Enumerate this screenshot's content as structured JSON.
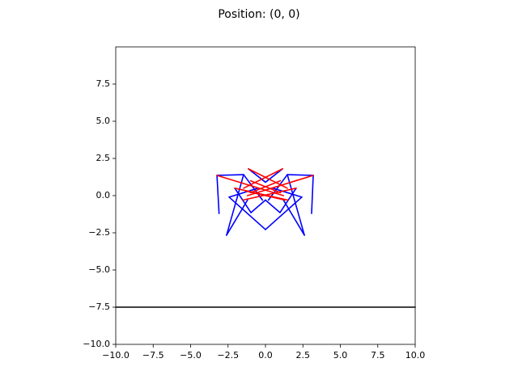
{
  "chart_data": {
    "type": "segments",
    "title": "Position: (0, 0)",
    "xlim": [
      -10,
      10
    ],
    "ylim": [
      -10,
      10
    ],
    "xticks": [
      {
        "value": -10,
        "label": "−10.0"
      },
      {
        "value": -7.5,
        "label": "−7.5"
      },
      {
        "value": -5,
        "label": "−5.0"
      },
      {
        "value": -2.5,
        "label": "−2.5"
      },
      {
        "value": 0,
        "label": "0.0"
      },
      {
        "value": 2.5,
        "label": "2.5"
      },
      {
        "value": 5,
        "label": "5.0"
      },
      {
        "value": 7.5,
        "label": "7.5"
      },
      {
        "value": 10,
        "label": "10.0"
      }
    ],
    "yticks": [
      {
        "value": -10,
        "label": "−10.0"
      },
      {
        "value": -7.5,
        "label": "−7.5"
      },
      {
        "value": -5,
        "label": "−5.0"
      },
      {
        "value": -2.5,
        "label": "−2.5"
      },
      {
        "value": 0,
        "label": "0.0"
      },
      {
        "value": 2.5,
        "label": "2.5"
      },
      {
        "value": 5,
        "label": "5.0"
      },
      {
        "value": 7.5,
        "label": "7.5"
      }
    ],
    "segments": [
      {
        "color": "#000000",
        "x": [
          -10,
          10
        ],
        "y": [
          -7.5,
          -7.5
        ]
      },
      {
        "color": "#0000ff",
        "x": [
          -3.24,
          -3.1
        ],
        "y": [
          1.36,
          -1.2
        ]
      },
      {
        "color": "#0000ff",
        "x": [
          -3.24,
          -1.46
        ],
        "y": [
          1.36,
          1.41
        ]
      },
      {
        "color": "#0000ff",
        "x": [
          -1.46,
          -2.6
        ],
        "y": [
          1.41,
          -2.66
        ]
      },
      {
        "color": "#0000ff",
        "x": [
          -2.6,
          -1.2
        ],
        "y": [
          -2.66,
          -0.3
        ]
      },
      {
        "color": "#0000ff",
        "x": [
          -2.43,
          0
        ],
        "y": [
          -0.1,
          -2.28
        ]
      },
      {
        "color": "#0000ff",
        "x": [
          -2.05,
          -0.97
        ],
        "y": [
          0.5,
          -1.14
        ]
      },
      {
        "color": "#0000ff",
        "x": [
          -0.97,
          0
        ],
        "y": [
          -1.14,
          -0.3
        ]
      },
      {
        "color": "#0000ff",
        "x": [
          -1.14,
          0
        ],
        "y": [
          1.8,
          0.9
        ]
      },
      {
        "color": "#0000ff",
        "x": [
          -2.43,
          -0.5
        ],
        "y": [
          -0.1,
          0.5
        ]
      },
      {
        "color": "#0000ff",
        "x": [
          -1.46,
          -0.2
        ],
        "y": [
          1.41,
          -0.3
        ]
      },
      {
        "color": "#0000ff",
        "x": [
          3.19,
          3.08
        ],
        "y": [
          1.36,
          -1.2
        ]
      },
      {
        "color": "#0000ff",
        "x": [
          3.19,
          1.46
        ],
        "y": [
          1.36,
          1.41
        ]
      },
      {
        "color": "#0000ff",
        "x": [
          1.46,
          2.6
        ],
        "y": [
          1.41,
          -2.66
        ]
      },
      {
        "color": "#0000ff",
        "x": [
          2.6,
          1.2
        ],
        "y": [
          -2.66,
          -0.3
        ]
      },
      {
        "color": "#0000ff",
        "x": [
          2.43,
          0
        ],
        "y": [
          -0.1,
          -2.28
        ]
      },
      {
        "color": "#0000ff",
        "x": [
          2.05,
          0.97
        ],
        "y": [
          0.5,
          -1.14
        ]
      },
      {
        "color": "#0000ff",
        "x": [
          0.97,
          0
        ],
        "y": [
          -1.14,
          -0.3
        ]
      },
      {
        "color": "#0000ff",
        "x": [
          1.14,
          0
        ],
        "y": [
          1.8,
          0.9
        ]
      },
      {
        "color": "#0000ff",
        "x": [
          2.43,
          0.5
        ],
        "y": [
          -0.1,
          0.5
        ]
      },
      {
        "color": "#0000ff",
        "x": [
          1.46,
          0.2
        ],
        "y": [
          1.41,
          -0.3
        ]
      },
      {
        "color": "#ff0000",
        "x": [
          -3.24,
          1.2
        ],
        "y": [
          1.36,
          0
        ]
      },
      {
        "color": "#ff0000",
        "x": [
          3.19,
          -1.2
        ],
        "y": [
          1.36,
          0
        ]
      },
      {
        "color": "#ff0000",
        "x": [
          -1.14,
          1.46
        ],
        "y": [
          1.8,
          0.5
        ]
      },
      {
        "color": "#ff0000",
        "x": [
          1.14,
          -1.46
        ],
        "y": [
          1.8,
          0.5
        ]
      },
      {
        "color": "#ff0000",
        "x": [
          -2.05,
          1.5
        ],
        "y": [
          0.5,
          -0.3
        ]
      },
      {
        "color": "#ff0000",
        "x": [
          2.05,
          -1.5
        ],
        "y": [
          0.5,
          -0.3
        ]
      },
      {
        "color": "#ff0000",
        "x": [
          -1.0,
          1.0
        ],
        "y": [
          1.0,
          0.2
        ]
      },
      {
        "color": "#ff0000",
        "x": [
          1.0,
          -1.0
        ],
        "y": [
          1.0,
          0.2
        ]
      },
      {
        "color": "#ff0000",
        "x": [
          -1.3,
          1.3
        ],
        "y": [
          0.3,
          -0.3
        ]
      }
    ]
  }
}
